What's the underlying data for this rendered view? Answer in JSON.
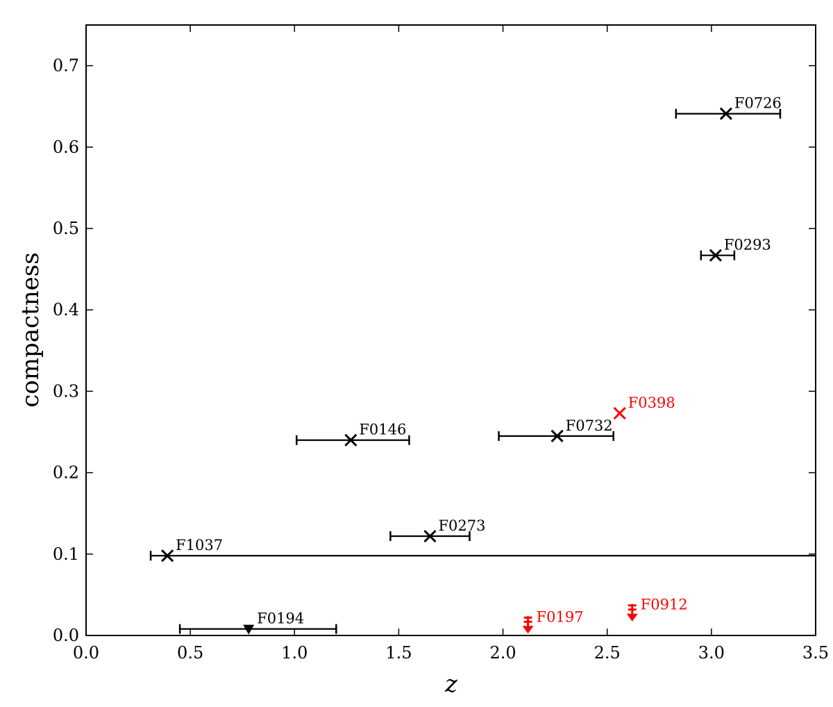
{
  "chart_data": {
    "type": "scatter",
    "title": "",
    "xlabel": "z",
    "ylabel": "compactness",
    "xlim": [
      0.0,
      3.5
    ],
    "ylim": [
      0.0,
      0.75
    ],
    "xticks": [
      "0.0",
      "0.5",
      "1.0",
      "1.5",
      "2.0",
      "2.5",
      "3.0",
      "3.5"
    ],
    "yticks": [
      "0.0",
      "0.1",
      "0.2",
      "0.3",
      "0.4",
      "0.5",
      "0.6",
      "0.7"
    ],
    "grid": false,
    "colors": {
      "black": "#000000",
      "red": "#ff0000"
    },
    "points": [
      {
        "label": "F0726",
        "x": 3.07,
        "y": 0.641,
        "xerr": [
          2.83,
          3.33
        ],
        "marker": "x",
        "color": "black"
      },
      {
        "label": "F0293",
        "x": 3.02,
        "y": 0.467,
        "xerr": [
          2.95,
          3.11
        ],
        "marker": "x",
        "color": "black"
      },
      {
        "label": "F0398",
        "x": 2.56,
        "y": 0.273,
        "marker": "x",
        "color": "red"
      },
      {
        "label": "F0732",
        "x": 2.26,
        "y": 0.245,
        "xerr": [
          1.98,
          2.53
        ],
        "marker": "x",
        "color": "black"
      },
      {
        "label": "F0146",
        "x": 1.27,
        "y": 0.24,
        "xerr": [
          1.01,
          1.55
        ],
        "marker": "x",
        "color": "black"
      },
      {
        "label": "F0273",
        "x": 1.65,
        "y": 0.122,
        "xerr": [
          1.46,
          1.84
        ],
        "marker": "x",
        "color": "black"
      },
      {
        "label": "F1037",
        "x": 0.39,
        "y": 0.098,
        "xerr": [
          0.31,
          3.6
        ],
        "marker": "x",
        "color": "black"
      },
      {
        "label": "F0194",
        "x": 0.78,
        "y": 0.008,
        "xerr": [
          0.45,
          1.2
        ],
        "marker": "triangle-down",
        "color": "black"
      },
      {
        "label": "F0197",
        "x": 2.12,
        "y": 0.01,
        "marker": "upper-limit",
        "color": "red"
      },
      {
        "label": "F0912",
        "x": 2.62,
        "y": 0.025,
        "marker": "upper-limit",
        "color": "red"
      }
    ]
  }
}
